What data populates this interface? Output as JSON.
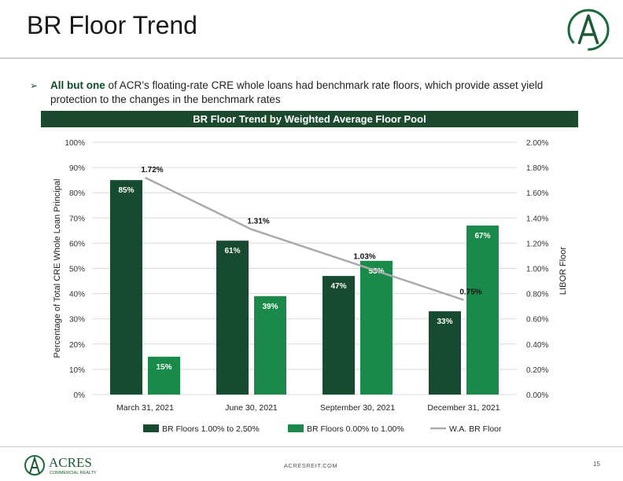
{
  "page": {
    "title": "BR Floor Trend",
    "bullet_strong": "All but one",
    "bullet_rest": " of ACR’s floating-rate CRE whole loans had benchmark rate floors, which provide asset yield protection to the changes in the benchmark rates",
    "footer_url": "ACRESREIT.COM",
    "page_number": "15",
    "footer_brand": "ACRES",
    "footer_brand_sub": "COMMERCIAL REALTY",
    "logo_letter": "A"
  },
  "colors": {
    "dark_green": "#164a31",
    "bright_green": "#1a8a4a",
    "line_gray": "#aaaaaa",
    "banner": "#1b4a2e"
  },
  "chart_data": {
    "type": "bar",
    "title": "BR Floor Trend by Weighted Average Floor Pool",
    "categories": [
      "March 31, 2021",
      "June 30, 2021",
      "September 30, 2021",
      "December 31, 2021"
    ],
    "series": [
      {
        "name": "BR Floors 1.00% to 2.50%",
        "values": [
          85,
          61,
          47,
          33
        ],
        "labels": [
          "85%",
          "61%",
          "47%",
          "33%"
        ]
      },
      {
        "name": "BR Floors 0.00% to 1.00%",
        "values": [
          15,
          39,
          53,
          67
        ],
        "labels": [
          "15%",
          "39%",
          "53%",
          "67%"
        ]
      }
    ],
    "line_series": {
      "name": "W.A. BR Floor",
      "values": [
        1.72,
        1.31,
        1.03,
        0.75
      ],
      "labels": [
        "1.72%",
        "1.31%",
        "1.03%",
        "0.75%"
      ],
      "axis": "right"
    },
    "ylabel": "Percentage of Total CRE Whole Loan Principal",
    "ylabel_right": "LIBOR Floor",
    "ylim": [
      0,
      100
    ],
    "ylim_right": [
      0,
      2.0
    ],
    "y_ticks": [
      "0%",
      "10%",
      "20%",
      "30%",
      "40%",
      "50%",
      "60%",
      "70%",
      "80%",
      "90%",
      "100%"
    ],
    "y_ticks_right": [
      "0.00%",
      "0.20%",
      "0.40%",
      "0.60%",
      "0.80%",
      "1.00%",
      "1.20%",
      "1.40%",
      "1.60%",
      "1.80%",
      "2.00%"
    ],
    "grid": true,
    "legend_placement": "bottom"
  }
}
